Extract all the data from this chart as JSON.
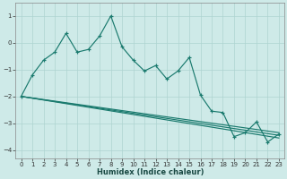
{
  "xlabel": "Humidex (Indice chaleur)",
  "background_color": "#ceeae8",
  "line_color": "#1a7a6e",
  "grid_color": "#aed4d0",
  "xlim": [
    -0.5,
    23.5
  ],
  "ylim": [
    -4.3,
    1.5
  ],
  "yticks": [
    -4,
    -3,
    -2,
    -1,
    0,
    1
  ],
  "xticks": [
    0,
    1,
    2,
    3,
    4,
    5,
    6,
    7,
    8,
    9,
    10,
    11,
    12,
    13,
    14,
    15,
    16,
    17,
    18,
    19,
    20,
    21,
    22,
    23
  ],
  "series1_x": [
    0,
    1,
    2,
    3,
    4,
    5,
    6,
    7,
    8,
    9,
    10,
    11,
    12,
    13,
    14,
    15,
    16,
    17,
    18,
    19,
    20,
    21,
    22,
    23
  ],
  "series1_y": [
    -2.0,
    -1.2,
    -0.65,
    -0.35,
    0.35,
    -0.35,
    -0.25,
    0.25,
    1.0,
    -0.15,
    -0.65,
    -1.05,
    -0.85,
    -1.35,
    -1.05,
    -0.55,
    -1.95,
    -2.55,
    -2.6,
    -3.5,
    -3.35,
    -2.95,
    -3.7,
    -3.4
  ],
  "line1_x": [
    0,
    23
  ],
  "line1_y": [
    -2.0,
    -3.35
  ],
  "line2_x": [
    0,
    23
  ],
  "line2_y": [
    -2.0,
    -3.45
  ],
  "line3_x": [
    0,
    23
  ],
  "line3_y": [
    -2.0,
    -3.55
  ]
}
